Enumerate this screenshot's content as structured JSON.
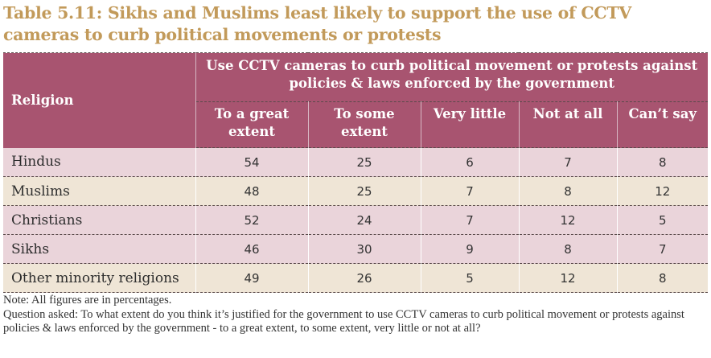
{
  "title": "Table 5.11: Sikhs and Muslims least likely to support the use of CCTV cameras to curb political movements or protests",
  "table": {
    "row_header": "Religion",
    "group_header": "Use CCTV cameras to curb political movement or protests against policies & laws enforced by the government",
    "columns": [
      "To a great extent",
      "To some extent",
      "Very little",
      "Not at all",
      "Can’t say"
    ],
    "rows": [
      {
        "religion": "Hindus",
        "values": [
          "54",
          "25",
          "6",
          "7",
          "8"
        ]
      },
      {
        "religion": "Muslims",
        "values": [
          "48",
          "25",
          "7",
          "8",
          "12"
        ]
      },
      {
        "religion": "Christians",
        "values": [
          "52",
          "24",
          "7",
          "12",
          "5"
        ]
      },
      {
        "religion": "Sikhs",
        "values": [
          "46",
          "30",
          "9",
          "8",
          "7"
        ]
      },
      {
        "religion": "Other minority religions",
        "values": [
          "49",
          "26",
          "5",
          "12",
          "8"
        ]
      }
    ]
  },
  "notes": {
    "note": "Note: All figures are in percentages.",
    "question": "Question asked: To what extent do you think it’s justified for the government to use CCTV cameras to curb political movement or protests against policies & laws enforced by the government -  to a great extent, to some extent, very little or not at all?"
  },
  "colors": {
    "title": "#c29a5a",
    "header_bg": "#a85470",
    "row_pink": "#ead4da",
    "row_beige": "#efe5d6"
  }
}
